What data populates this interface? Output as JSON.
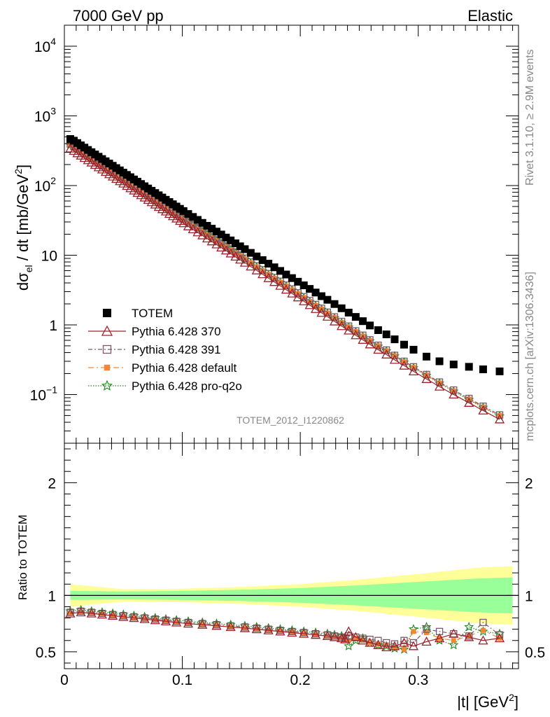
{
  "header": {
    "left": "7000 GeV pp",
    "right": "Elastic"
  },
  "side_text": {
    "rivet": "Rivet 3.1.10, ≥ 2.9M events",
    "source": "mcplots.cern.ch [arXiv:1306.3436]"
  },
  "analysis_label": "TOTEM_2012_I1220862",
  "colors": {
    "totem": "#000000",
    "p370": "#a0202a",
    "p391": "#7a5a6a",
    "pdefault": "#f58634",
    "pq2o": "#1e8a1e",
    "band_inner": "#99ff99",
    "band_outer": "#ffff99"
  },
  "chart_data": [
    {
      "type": "scatter",
      "panel": "main",
      "ylabel_main": "dσ",
      "ylabel_sub": "el",
      "ylabel_rest": " / dt [mb/GeV",
      "ylabel_sup": "2",
      "ylabel_end": "]",
      "yscale": "log",
      "ylim": [
        0.02,
        20000
      ],
      "xlim": [
        0,
        0.385
      ],
      "ytick_labels": [
        {
          "value": 10000,
          "base": "10",
          "exp": "4"
        },
        {
          "value": 1000,
          "base": "10",
          "exp": "3"
        },
        {
          "value": 100,
          "base": "10",
          "exp": "2"
        },
        {
          "value": 10,
          "base": "10",
          "exp": ""
        },
        {
          "value": 1,
          "base": "1",
          "exp": ""
        },
        {
          "value": 0.1,
          "base": "10",
          "exp": "−1"
        }
      ],
      "legend": [
        {
          "label": "TOTEM",
          "marker": "square-filled",
          "color_key": "totem"
        },
        {
          "label": "Pythia 6.428 370",
          "marker": "triangle-open",
          "color_key": "p370"
        },
        {
          "label": "Pythia 6.428 391",
          "marker": "square-open",
          "color_key": "p391"
        },
        {
          "label": "Pythia 6.428 default",
          "marker": "square-small",
          "color_key": "pdefault"
        },
        {
          "label": "Pythia 6.428 pro-q2o",
          "marker": "star",
          "color_key": "pq2o"
        }
      ],
      "legend_position": "lower-left",
      "totem": {
        "x": [
          0.005,
          0.008,
          0.011,
          0.014,
          0.017,
          0.02,
          0.023,
          0.026,
          0.029,
          0.032,
          0.035,
          0.038,
          0.041,
          0.044,
          0.047,
          0.05,
          0.053,
          0.056,
          0.059,
          0.062,
          0.065,
          0.068,
          0.071,
          0.074,
          0.077,
          0.08,
          0.083,
          0.086,
          0.089,
          0.092,
          0.095,
          0.098,
          0.101,
          0.105,
          0.109,
          0.113,
          0.117,
          0.121,
          0.125,
          0.129,
          0.133,
          0.137,
          0.141,
          0.145,
          0.149,
          0.153,
          0.158,
          0.163,
          0.168,
          0.173,
          0.178,
          0.183,
          0.188,
          0.193,
          0.198,
          0.203,
          0.208,
          0.213,
          0.218,
          0.223,
          0.229,
          0.235,
          0.241,
          0.247,
          0.253,
          0.259,
          0.266,
          0.273,
          0.28,
          0.288,
          0.296,
          0.307,
          0.318,
          0.33,
          0.343,
          0.355,
          0.369
        ],
        "y": [
          465,
          440,
          407,
          377,
          350,
          324,
          301,
          279,
          259,
          240,
          223,
          207,
          192,
          178,
          165,
          153,
          142,
          131.7,
          122.2,
          113.4,
          105.2,
          97.6,
          90.6,
          84.1,
          78.0,
          72.4,
          67.2,
          62.4,
          57.9,
          53.8,
          49.9,
          46.3,
          43.0,
          39.0,
          35.4,
          32.1,
          29.1,
          26.4,
          24.0,
          21.8,
          19.8,
          17.9,
          16.3,
          14.8,
          13.4,
          12.2,
          10.8,
          9.6,
          8.5,
          7.55,
          6.7,
          5.95,
          5.28,
          4.69,
          4.16,
          3.69,
          3.28,
          2.91,
          2.58,
          2.29,
          1.99,
          1.73,
          1.5,
          1.3,
          1.13,
          0.98,
          0.84,
          0.73,
          0.62,
          0.52,
          0.44,
          0.35,
          0.3,
          0.27,
          0.25,
          0.23,
          0.215
        ]
      },
      "pythia_370": {
        "x": [
          0.005,
          0.008,
          0.011,
          0.014,
          0.017,
          0.02,
          0.023,
          0.026,
          0.029,
          0.032,
          0.035,
          0.038,
          0.041,
          0.044,
          0.047,
          0.05,
          0.053,
          0.056,
          0.059,
          0.062,
          0.065,
          0.068,
          0.071,
          0.074,
          0.077,
          0.08,
          0.083,
          0.086,
          0.089,
          0.092,
          0.095,
          0.098,
          0.101,
          0.105,
          0.109,
          0.113,
          0.117,
          0.121,
          0.125,
          0.129,
          0.133,
          0.137,
          0.141,
          0.145,
          0.149,
          0.153,
          0.158,
          0.163,
          0.168,
          0.173,
          0.178,
          0.183,
          0.188,
          0.193,
          0.198,
          0.203,
          0.208,
          0.213,
          0.218,
          0.223,
          0.229,
          0.235,
          0.241,
          0.247,
          0.253,
          0.259,
          0.266,
          0.273,
          0.28,
          0.288,
          0.296,
          0.307,
          0.318,
          0.33,
          0.343,
          0.355,
          0.369
        ],
        "y": [
          340,
          315,
          291,
          269,
          249,
          231,
          214,
          198,
          183,
          170,
          157,
          145.4,
          134.6,
          124.6,
          115.4,
          106.8,
          98.9,
          91.6,
          84.8,
          78.5,
          72.7,
          67.3,
          62.3,
          57.7,
          53.4,
          49.4,
          45.8,
          42.4,
          39.2,
          36.3,
          33.6,
          31.1,
          28.8,
          26.0,
          23.6,
          21.3,
          19.3,
          17.4,
          15.8,
          14.3,
          12.9,
          11.7,
          10.6,
          9.55,
          8.64,
          7.81,
          6.88,
          6.05,
          5.33,
          4.69,
          4.13,
          3.64,
          3.2,
          2.82,
          2.48,
          2.18,
          1.92,
          1.69,
          1.49,
          1.31,
          1.12,
          0.96,
          0.83,
          0.71,
          0.61,
          0.525,
          0.44,
          0.375,
          0.315,
          0.26,
          0.215,
          0.167,
          0.13,
          0.1,
          0.076,
          0.059,
          0.044
        ]
      },
      "pythia_391": {
        "x": [
          0.005,
          0.008,
          0.011,
          0.014,
          0.017,
          0.02,
          0.023,
          0.026,
          0.029,
          0.032,
          0.035,
          0.038,
          0.041,
          0.044,
          0.047,
          0.05,
          0.053,
          0.056,
          0.059,
          0.062,
          0.065,
          0.068,
          0.071,
          0.074,
          0.077,
          0.08,
          0.083,
          0.086,
          0.089,
          0.092,
          0.095,
          0.098,
          0.101,
          0.105,
          0.109,
          0.113,
          0.117,
          0.121,
          0.125,
          0.129,
          0.133,
          0.137,
          0.141,
          0.145,
          0.149,
          0.153,
          0.158,
          0.163,
          0.168,
          0.173,
          0.178,
          0.183,
          0.188,
          0.193,
          0.198,
          0.203,
          0.208,
          0.213,
          0.218,
          0.223,
          0.229,
          0.235,
          0.241,
          0.247,
          0.253,
          0.259,
          0.266,
          0.273,
          0.28,
          0.288,
          0.296,
          0.307,
          0.318,
          0.33,
          0.343,
          0.355,
          0.369
        ],
        "y": [
          395,
          366,
          338,
          313,
          289,
          268,
          248,
          230,
          213,
          197,
          182,
          168.7,
          156.2,
          144.6,
          133.9,
          124,
          114.8,
          106.3,
          98.4,
          91.1,
          84.4,
          78.1,
          72.3,
          67,
          62,
          57.4,
          53.1,
          49.2,
          45.5,
          42.2,
          39,
          36.1,
          33.4,
          30.2,
          27.4,
          24.8,
          22.4,
          20.3,
          18.4,
          16.6,
          15,
          13.6,
          12.3,
          11.1,
          10,
          9.06,
          7.98,
          7.02,
          6.18,
          5.44,
          4.79,
          4.22,
          3.71,
          3.27,
          2.88,
          2.53,
          2.23,
          1.96,
          1.73,
          1.52,
          1.3,
          1.12,
          0.96,
          0.82,
          0.71,
          0.61,
          0.51,
          0.435,
          0.365,
          0.3,
          0.25,
          0.194,
          0.151,
          0.116,
          0.088,
          0.068,
          0.051
        ]
      },
      "pythia_default": {
        "x": [
          0.005,
          0.008,
          0.011,
          0.014,
          0.017,
          0.02,
          0.023,
          0.026,
          0.029,
          0.032,
          0.035,
          0.038,
          0.041,
          0.044,
          0.047,
          0.05,
          0.053,
          0.056,
          0.059,
          0.062,
          0.065,
          0.068,
          0.071,
          0.074,
          0.077,
          0.08,
          0.083,
          0.086,
          0.089,
          0.092,
          0.095,
          0.098,
          0.101,
          0.105,
          0.109,
          0.113,
          0.117,
          0.121,
          0.125,
          0.129,
          0.133,
          0.137,
          0.141,
          0.145,
          0.149,
          0.153,
          0.158,
          0.163,
          0.168,
          0.173,
          0.178,
          0.183,
          0.188,
          0.193,
          0.198,
          0.203,
          0.208,
          0.213,
          0.218,
          0.223,
          0.229,
          0.235,
          0.241,
          0.247,
          0.253,
          0.259,
          0.266,
          0.273,
          0.28,
          0.288,
          0.296,
          0.307,
          0.318,
          0.33,
          0.343,
          0.355,
          0.369
        ],
        "y": [
          385,
          357,
          330,
          305,
          282,
          261,
          242,
          224,
          207,
          192,
          177,
          164.4,
          152.2,
          140.9,
          130.4,
          120.8,
          111.8,
          103.5,
          95.8,
          88.7,
          82.1,
          76.1,
          70.4,
          65.2,
          60.4,
          55.9,
          51.7,
          47.9,
          44.3,
          41,
          38,
          35.2,
          32.6,
          29.4,
          26.7,
          24.1,
          21.8,
          19.8,
          17.9,
          16.2,
          14.6,
          13.2,
          12,
          10.8,
          9.77,
          8.83,
          7.78,
          6.84,
          6.02,
          5.3,
          4.67,
          4.11,
          3.62,
          3.18,
          2.8,
          2.47,
          2.17,
          1.91,
          1.68,
          1.48,
          1.27,
          1.09,
          0.94,
          0.8,
          0.69,
          0.595,
          0.5,
          0.425,
          0.36,
          0.295,
          0.245,
          0.19,
          0.147,
          0.113,
          0.086,
          0.066,
          0.05
        ]
      },
      "pythia_pro_q2o": {
        "x": [
          0.005,
          0.008,
          0.011,
          0.014,
          0.017,
          0.02,
          0.023,
          0.026,
          0.029,
          0.032,
          0.035,
          0.038,
          0.041,
          0.044,
          0.047,
          0.05,
          0.053,
          0.056,
          0.059,
          0.062,
          0.065,
          0.068,
          0.071,
          0.074,
          0.077,
          0.08,
          0.083,
          0.086,
          0.089,
          0.092,
          0.095,
          0.098,
          0.101,
          0.105,
          0.109,
          0.113,
          0.117,
          0.121,
          0.125,
          0.129,
          0.133,
          0.137,
          0.141,
          0.145,
          0.149,
          0.153,
          0.158,
          0.163,
          0.168,
          0.173,
          0.178,
          0.183,
          0.188,
          0.193,
          0.198,
          0.203,
          0.208,
          0.213,
          0.218,
          0.223,
          0.229,
          0.235,
          0.241,
          0.247,
          0.253,
          0.259,
          0.266,
          0.273,
          0.28,
          0.288,
          0.296,
          0.307,
          0.318,
          0.33,
          0.343,
          0.355,
          0.369
        ],
        "y": [
          380,
          352,
          325,
          301,
          278,
          257,
          238,
          221,
          204,
          189,
          175,
          162,
          150,
          138.9,
          128.6,
          119.1,
          110.3,
          102.1,
          94.5,
          87.5,
          81,
          75,
          69.4,
          64.3,
          59.5,
          55.1,
          51,
          47.2,
          43.7,
          40.4,
          37.4,
          34.7,
          32.1,
          29,
          26.3,
          23.8,
          21.5,
          19.5,
          17.7,
          16,
          14.4,
          13,
          11.8,
          10.7,
          9.64,
          8.71,
          7.67,
          6.75,
          5.94,
          5.23,
          4.6,
          4.05,
          3.57,
          3.14,
          2.76,
          2.43,
          2.14,
          1.88,
          1.66,
          1.46,
          1.25,
          1.07,
          0.92,
          0.79,
          0.68,
          0.585,
          0.49,
          0.42,
          0.355,
          0.29,
          0.24,
          0.187,
          0.145,
          0.111,
          0.084,
          0.065,
          0.049
        ]
      }
    },
    {
      "type": "line",
      "panel": "ratio",
      "ylabel": "Ratio to TOTEM",
      "xlabel_main": "|t| [GeV",
      "xlabel_sup": "2",
      "xlabel_end": "]",
      "ylim": [
        0.35,
        2.35
      ],
      "xlim": [
        0,
        0.385
      ],
      "yticks": [
        "0.5",
        "1",
        "2"
      ],
      "xticks": [
        "0",
        "0.1",
        "0.2",
        "0.3"
      ],
      "band": {
        "x": [
          0.005,
          0.05,
          0.1,
          0.15,
          0.2,
          0.25,
          0.3,
          0.35,
          0.38
        ],
        "inner_half": [
          0.04,
          0.035,
          0.04,
          0.05,
          0.065,
          0.09,
          0.12,
          0.15,
          0.16
        ],
        "outer_half": [
          0.1,
          0.055,
          0.06,
          0.075,
          0.1,
          0.14,
          0.19,
          0.245,
          0.26
        ]
      },
      "ratio_370": [
        0.84,
        0.85,
        0.84,
        0.83,
        0.82,
        0.81,
        0.8,
        0.79,
        0.78,
        0.77,
        0.76,
        0.75,
        0.74,
        0.73,
        0.72,
        0.71,
        0.7,
        0.69,
        0.68,
        0.67,
        0.66,
        0.65,
        0.64,
        0.63,
        0.62,
        0.61,
        0.68,
        0.63,
        0.6,
        0.58,
        0.56,
        0.54,
        0.55,
        0.58,
        0.55,
        0.59,
        0.62,
        0.66,
        0.63,
        0.6,
        0.62
      ],
      "ratio_391": [
        0.85,
        0.86,
        0.85,
        0.84,
        0.83,
        0.82,
        0.81,
        0.8,
        0.79,
        0.78,
        0.77,
        0.76,
        0.75,
        0.74,
        0.73,
        0.72,
        0.71,
        0.7,
        0.69,
        0.68,
        0.67,
        0.66,
        0.65,
        0.64,
        0.63,
        0.62,
        0.64,
        0.63,
        0.62,
        0.61,
        0.6,
        0.58,
        0.57,
        0.6,
        0.58,
        0.7,
        0.68,
        0.66,
        0.64,
        0.76,
        0.65
      ],
      "ratio_default": [
        0.84,
        0.85,
        0.84,
        0.83,
        0.82,
        0.81,
        0.8,
        0.79,
        0.78,
        0.77,
        0.76,
        0.75,
        0.74,
        0.73,
        0.72,
        0.71,
        0.7,
        0.69,
        0.68,
        0.67,
        0.66,
        0.65,
        0.64,
        0.63,
        0.62,
        0.61,
        0.6,
        0.62,
        0.6,
        0.58,
        0.57,
        0.56,
        0.54,
        0.52,
        0.68,
        0.67,
        0.62,
        0.6,
        0.64,
        0.69,
        0.62
      ],
      "ratio_pq2o": [
        0.86,
        0.87,
        0.86,
        0.85,
        0.84,
        0.83,
        0.82,
        0.81,
        0.8,
        0.79,
        0.78,
        0.77,
        0.76,
        0.75,
        0.74,
        0.73,
        0.72,
        0.71,
        0.7,
        0.69,
        0.68,
        0.67,
        0.66,
        0.65,
        0.64,
        0.63,
        0.55,
        0.6,
        0.62,
        0.58,
        0.56,
        0.55,
        0.53,
        0.52,
        0.7,
        0.72,
        0.6,
        0.56,
        0.72,
        0.68,
        0.66
      ],
      "ratio_x": [
        0.005,
        0.014,
        0.023,
        0.032,
        0.041,
        0.05,
        0.059,
        0.068,
        0.077,
        0.086,
        0.095,
        0.105,
        0.117,
        0.129,
        0.141,
        0.153,
        0.163,
        0.173,
        0.183,
        0.193,
        0.203,
        0.213,
        0.223,
        0.229,
        0.235,
        0.238,
        0.241,
        0.247,
        0.253,
        0.259,
        0.266,
        0.273,
        0.28,
        0.288,
        0.296,
        0.307,
        0.318,
        0.33,
        0.343,
        0.355,
        0.369
      ]
    }
  ]
}
